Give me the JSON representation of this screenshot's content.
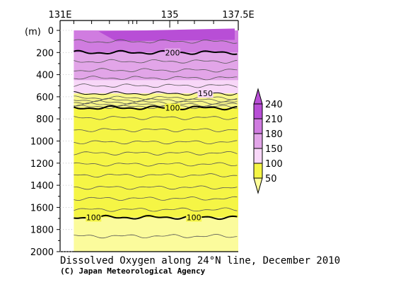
{
  "chart_data": {
    "type": "contour",
    "title": "Dissolved Oxygen along 24°N line, December 2010",
    "credit": "(C) Japan Meteorological Agency",
    "x_ticks": [
      {
        "lon": 131,
        "label": "131E"
      },
      {
        "lon": 135,
        "label": "135"
      },
      {
        "lon": 137.5,
        "label": "137.5E"
      }
    ],
    "x_range": [
      131,
      137.5
    ],
    "data_lon_range": [
      131.5,
      137.5
    ],
    "y_label": "(m)",
    "y_ticks": [
      0,
      200,
      400,
      600,
      800,
      1000,
      1200,
      1400,
      1600,
      1800,
      2000
    ],
    "y_range": [
      0,
      2000
    ],
    "station_lons": [
      131.5,
      132.15,
      132.8,
      133.5,
      133.65,
      133.8,
      134.4,
      135.3,
      135.9,
      136.6,
      137.5
    ],
    "colorbar": {
      "levels": [
        50,
        100,
        150,
        180,
        210,
        240
      ],
      "labels": [
        "50",
        "100",
        "150",
        "180",
        "210",
        "240"
      ],
      "colors": [
        "#ffff99",
        "#f5f545",
        "#f8d7f8",
        "#e2a5e8",
        "#d07ce0",
        "#b84ed6"
      ]
    },
    "bands": [
      {
        "top_depth": 0,
        "bottom_depth": 200,
        "color": "#d07ce0"
      },
      {
        "top_depth": 200,
        "bottom_depth": 450,
        "color": "#e2a5e8"
      },
      {
        "top_depth": 450,
        "bottom_depth": 570,
        "color": "#f8d7f8"
      },
      {
        "top_depth": 570,
        "bottom_depth": 700,
        "color": "#f8f78a"
      },
      {
        "top_depth": 700,
        "bottom_depth": 1690,
        "color": "#f5f545"
      },
      {
        "top_depth": 1690,
        "bottom_depth": 2000,
        "color": "#fbfb9c"
      }
    ],
    "contours": [
      {
        "value": 200,
        "depth": 200,
        "bold": true,
        "label": "200"
      },
      {
        "value": 150,
        "depth": 570,
        "bold": false,
        "label": "150"
      },
      {
        "value": 100,
        "depth": 700,
        "bold": true,
        "label": "100"
      },
      {
        "value": 100,
        "depth": 1690,
        "bold": true,
        "labels": [
          "100",
          "100"
        ]
      }
    ],
    "contour_labels": [
      "200",
      "150",
      "100",
      "100",
      "100"
    ]
  }
}
